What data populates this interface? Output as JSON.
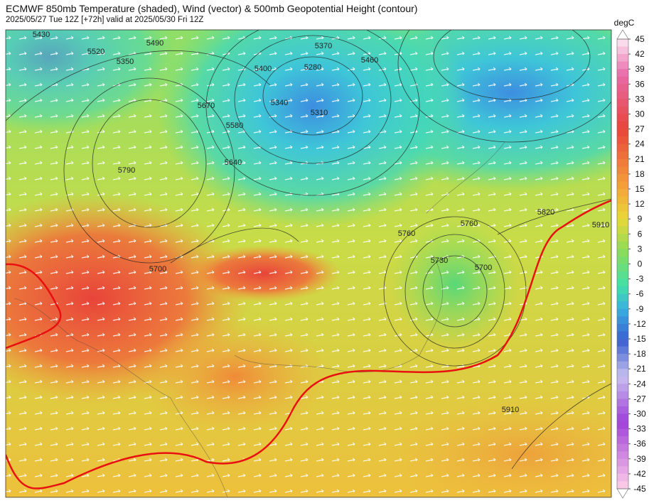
{
  "title": "ECMWF 850mb Temperature (shaded), Wind (vector) & 500mb Geopotential Height (contour)",
  "subtitle": "2025/05/27 Tue 12Z [+72h] valid at 2025/05/30 Fri 12Z",
  "colorbar": {
    "label": "degC",
    "ticks": [
      45,
      42,
      39,
      36,
      33,
      30,
      27,
      24,
      21,
      18,
      15,
      12,
      9,
      6,
      3,
      0,
      -3,
      -6,
      -9,
      -12,
      -15,
      -18,
      -21,
      -24,
      -27,
      -30,
      -33,
      -36,
      -39,
      -42,
      -45
    ]
  },
  "contour_labels": [
    "5490",
    "5520",
    "5350",
    "5670",
    "5580",
    "5640",
    "5790",
    "5700",
    "5430",
    "5280",
    "5370",
    "5340",
    "5310",
    "5400",
    "5460",
    "5760",
    "5730",
    "5820",
    "5910",
    "5910",
    "5760",
    "5700"
  ]
}
